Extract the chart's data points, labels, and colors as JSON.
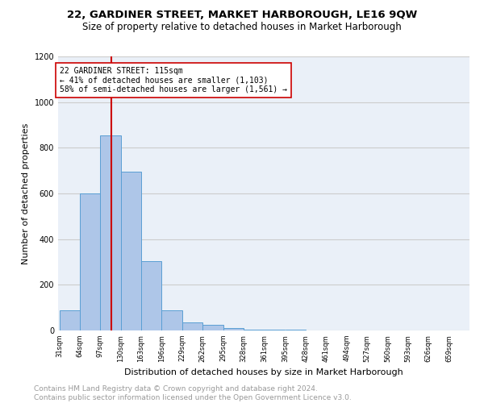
{
  "title": "22, GARDINER STREET, MARKET HARBOROUGH, LE16 9QW",
  "subtitle": "Size of property relative to detached houses in Market Harborough",
  "xlabel": "Distribution of detached houses by size in Market Harborough",
  "ylabel": "Number of detached properties",
  "footer": "Contains HM Land Registry data © Crown copyright and database right 2024.\nContains public sector information licensed under the Open Government Licence v3.0.",
  "bin_edges": [
    31,
    64,
    97,
    130,
    163,
    196,
    229,
    262,
    295,
    328,
    361,
    395,
    428,
    461,
    494,
    527,
    560,
    593,
    626,
    659,
    692
  ],
  "bar_heights": [
    90,
    600,
    855,
    695,
    305,
    90,
    35,
    25,
    10,
    5,
    2,
    2,
    1,
    1,
    1,
    1,
    0,
    0,
    1,
    0
  ],
  "bar_color": "#aec6e8",
  "bar_edge_color": "#5a9fd4",
  "property_size": 115,
  "vline_color": "#cc0000",
  "annotation_line1": "22 GARDINER STREET: 115sqm",
  "annotation_line2": "← 41% of detached houses are smaller (1,103)",
  "annotation_line3": "58% of semi-detached houses are larger (1,561) →",
  "annotation_box_color": "#ffffff",
  "annotation_box_edge": "#cc0000",
  "ylim": [
    0,
    1200
  ],
  "yticks": [
    0,
    200,
    400,
    600,
    800,
    1000,
    1200
  ],
  "grid_color": "#cccccc",
  "bg_color": "#eaf0f8",
  "title_fontsize": 9.5,
  "subtitle_fontsize": 8.5,
  "ylabel_fontsize": 8,
  "xlabel_fontsize": 8,
  "footer_fontsize": 6.5,
  "annotation_fontsize": 7,
  "tick_fontsize": 6,
  "ytick_fontsize": 7
}
